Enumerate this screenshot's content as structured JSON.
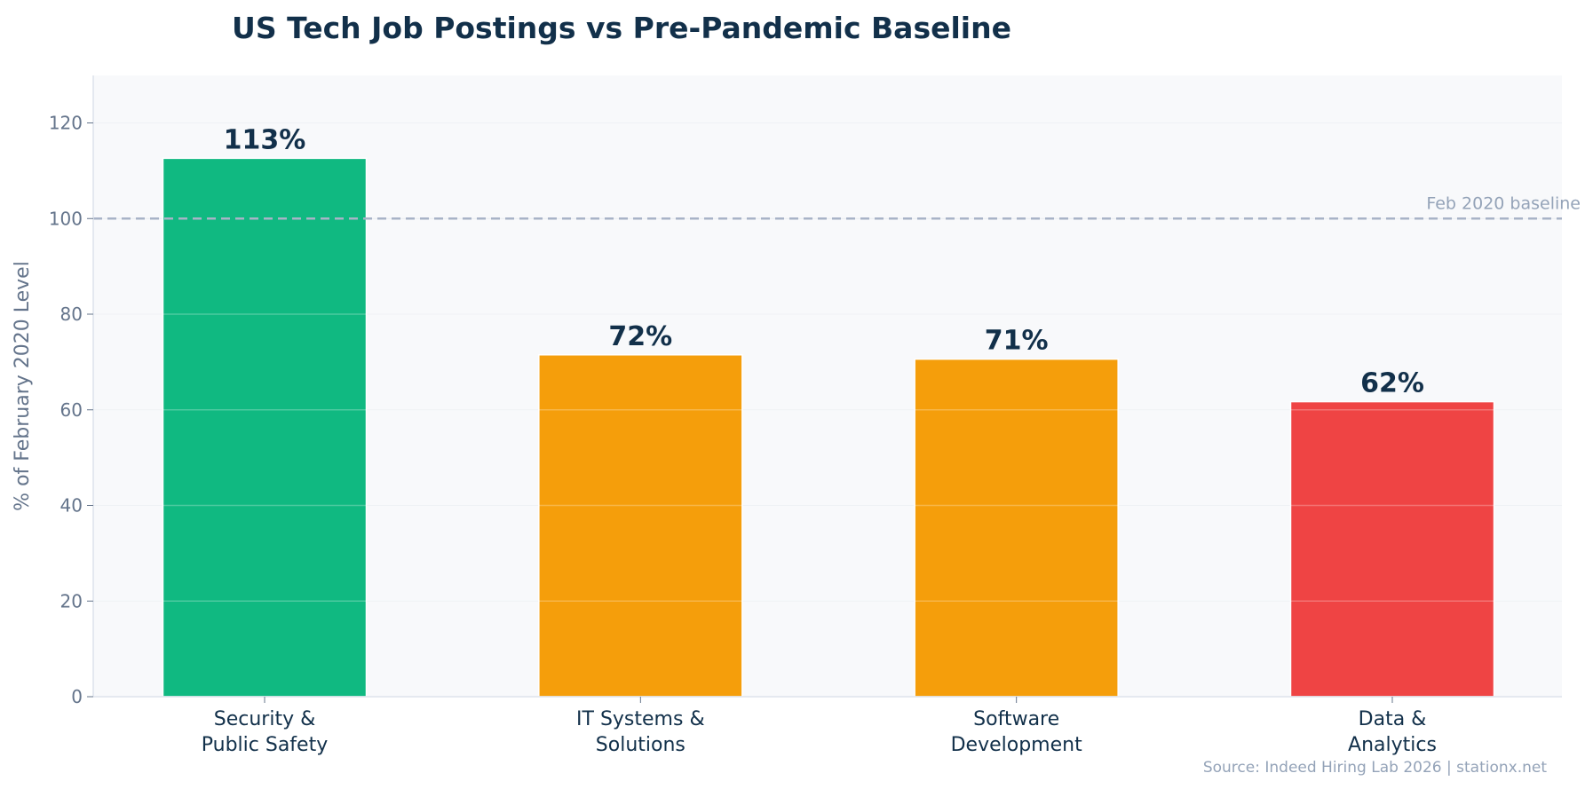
{
  "chart_data": {
    "type": "bar",
    "title": "US Tech Job Postings vs Pre-Pandemic Baseline",
    "xlabel": "",
    "ylabel": "% of February 2020 Level",
    "categories": [
      [
        "Security &",
        "Public Safety"
      ],
      [
        "IT Systems &",
        "Solutions"
      ],
      [
        "Software",
        "Development"
      ],
      [
        "Data &",
        "Analytics"
      ]
    ],
    "values": [
      112.6,
      71.5,
      70.6,
      61.7
    ],
    "data_labels": [
      "113%",
      "72%",
      "71%",
      "62%"
    ],
    "bar_colors": [
      "#10b981",
      "#f59e0b",
      "#f59e0b",
      "#ef4444"
    ],
    "ylim": [
      0,
      130
    ],
    "yticks": [
      0,
      20,
      40,
      60,
      80,
      100,
      120
    ],
    "grid": true,
    "reference_line": {
      "value": 100,
      "label": "Feb 2020 baseline",
      "color": "#a8b3c7"
    },
    "source": "Source: Indeed Hiring Lab 2026 | stationx.net"
  }
}
